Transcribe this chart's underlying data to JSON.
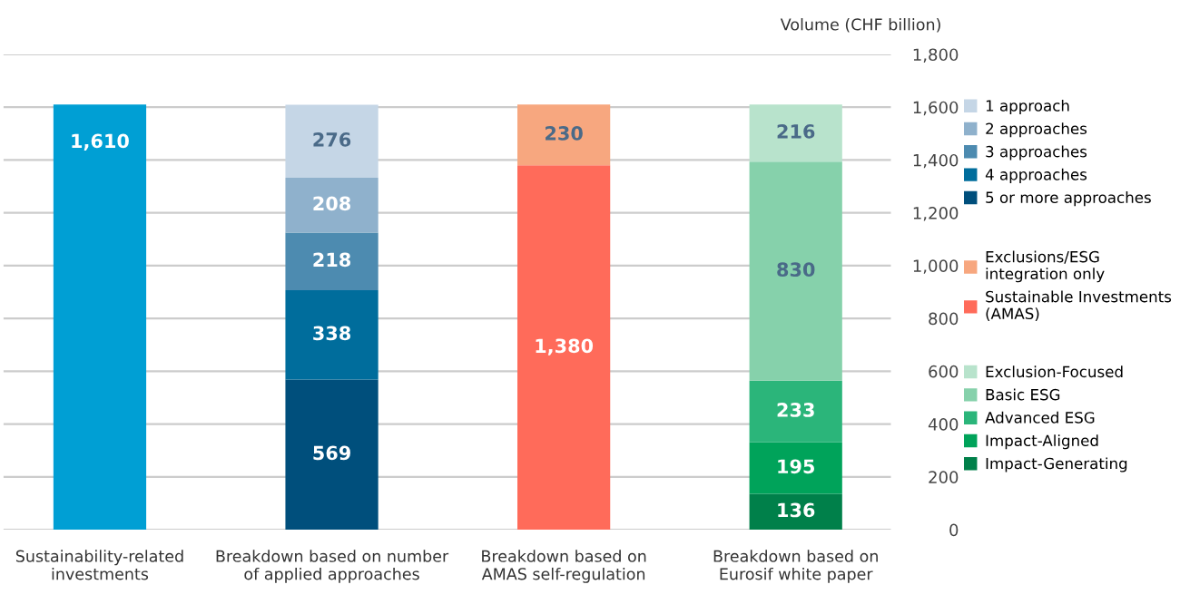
{
  "chart_data": {
    "type": "bar",
    "stacked": true,
    "ylabel": "Volume (CHF billion)",
    "categories": [
      "Sustainability-related\ninvestments",
      "Breakdown based on number\nof applied approaches",
      "Breakdown based on\nAMAS self-regulation",
      "Breakdown based on\nEurosif white paper"
    ],
    "ylim": [
      0,
      1800
    ],
    "yticks": [
      0,
      200,
      400,
      600,
      800,
      {
        "value": 1000,
        "label": "1,000"
      },
      {
        "value": 1200,
        "label": "1,200"
      },
      {
        "value": 1400,
        "label": "1,400"
      },
      {
        "value": 1600,
        "label": "1,600"
      },
      {
        "value": 1800,
        "label": "1,800"
      }
    ],
    "grid": "y",
    "legend": "right",
    "series": [
      {
        "color": "#009fd4",
        "values": [
          1610,
          null,
          null,
          null
        ],
        "value_labels": [
          "1,610",
          null,
          null,
          null
        ]
      },
      {
        "name": "5 or more approaches",
        "color": "#004f7c",
        "values": [
          null,
          569,
          null,
          null
        ],
        "value_labels": [
          null,
          "569",
          null,
          null
        ]
      },
      {
        "name": "4 approaches",
        "color": "#006d9c",
        "values": [
          null,
          338,
          null,
          null
        ],
        "value_labels": [
          null,
          "338",
          null,
          null
        ]
      },
      {
        "name": "3 approaches",
        "color": "#4d8bb0",
        "values": [
          null,
          218,
          null,
          null
        ],
        "value_labels": [
          null,
          "218",
          null,
          null
        ]
      },
      {
        "name": "2 approaches",
        "color": "#8fb1cc",
        "values": [
          null,
          208,
          null,
          null
        ],
        "value_labels": [
          null,
          "208",
          null,
          null
        ]
      },
      {
        "name": "1 approach",
        "color": "#c5d6e6",
        "values": [
          null,
          276,
          null,
          null
        ],
        "value_labels": [
          null,
          "276",
          null,
          null
        ]
      },
      {
        "name": "Sustainable Investments\n(AMAS)",
        "color": "#ff6b5a",
        "values": [
          null,
          null,
          1380,
          null
        ],
        "value_labels": [
          null,
          null,
          "1,380",
          null
        ]
      },
      {
        "name": "Exclusions/ESG\nintegration only",
        "color": "#f7a77f",
        "values": [
          null,
          null,
          230,
          null
        ],
        "value_labels": [
          null,
          null,
          "230",
          null
        ]
      },
      {
        "name": "Impact-Generating",
        "color": "#00804a",
        "values": [
          null,
          null,
          null,
          136
        ],
        "value_labels": [
          null,
          null,
          null,
          "136"
        ]
      },
      {
        "name": "Impact-Aligned",
        "color": "#00a35a",
        "values": [
          null,
          null,
          null,
          195
        ],
        "value_labels": [
          null,
          null,
          null,
          "195"
        ]
      },
      {
        "name": "Advanced ESG",
        "color": "#2bb57a",
        "values": [
          null,
          null,
          null,
          233
        ],
        "value_labels": [
          null,
          null,
          null,
          "233"
        ]
      },
      {
        "name": "Basic ESG",
        "color": "#86d1ab",
        "values": [
          null,
          null,
          null,
          830
        ],
        "value_labels": [
          null,
          null,
          null,
          "830"
        ]
      },
      {
        "name": "Exclusion-Focused",
        "color": "#b8e3cc",
        "values": [
          null,
          null,
          null,
          216
        ],
        "value_labels": [
          null,
          null,
          null,
          "216"
        ]
      }
    ]
  }
}
